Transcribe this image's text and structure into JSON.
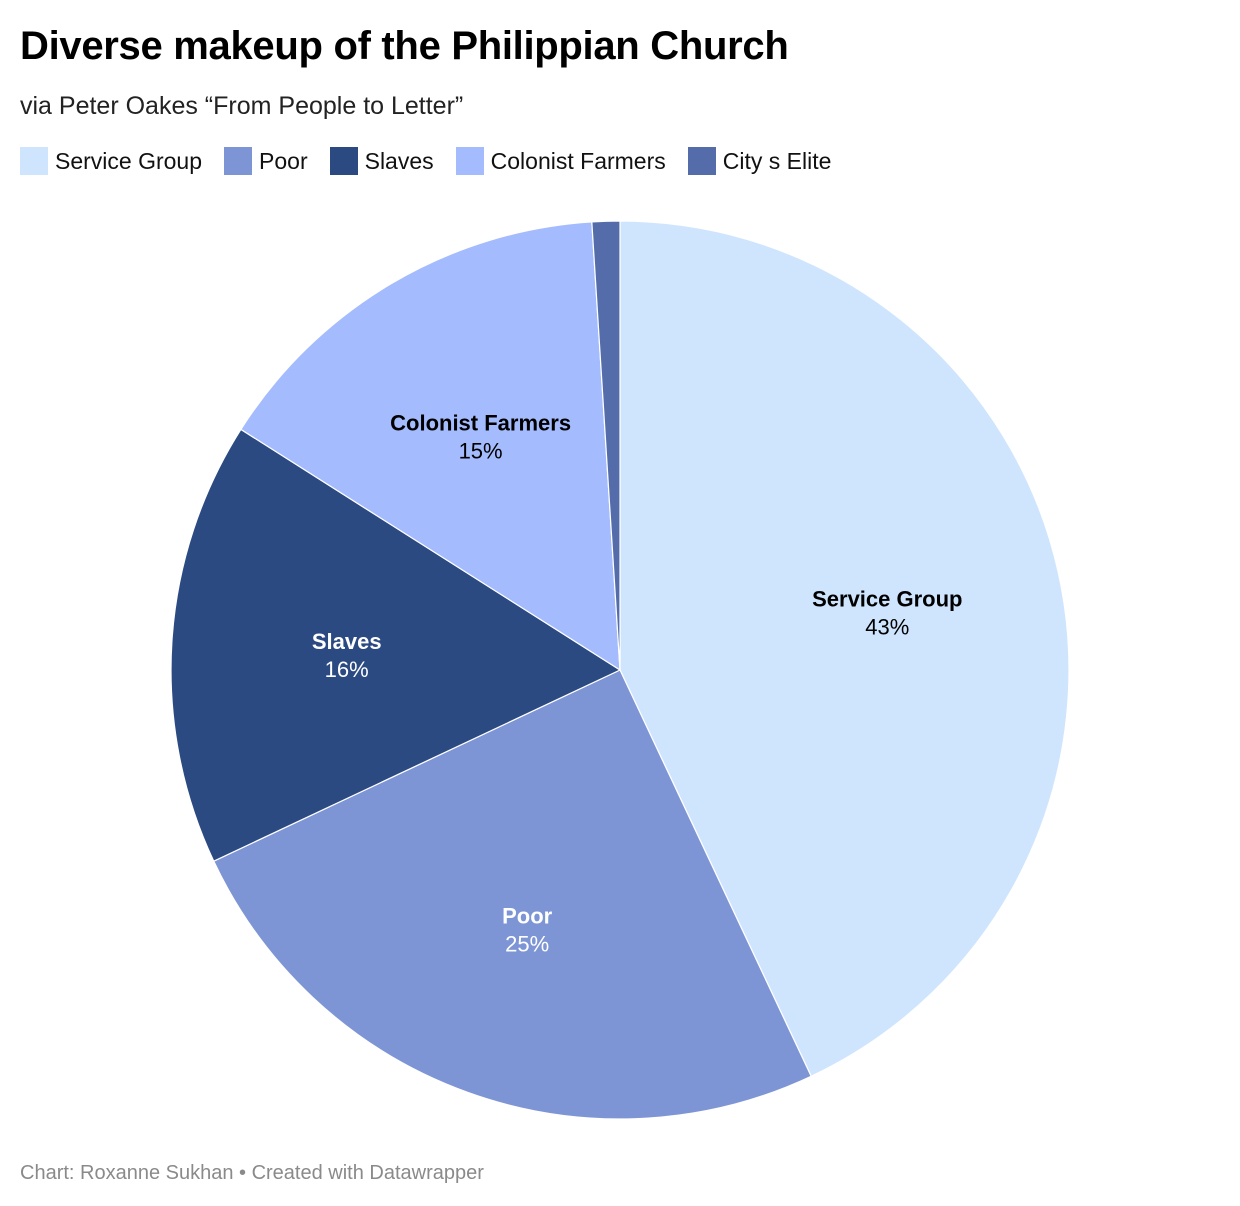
{
  "header": {
    "title": "Diverse makeup of the Philippian Church",
    "subtitle": "via Peter Oakes “From People to Letter”"
  },
  "footer": {
    "credit": "Chart: Roxanne Sukhan • Created with Datawrapper"
  },
  "chart_data": {
    "type": "pie",
    "title": "Diverse makeup of the Philippian Church",
    "subtitle": "via Peter Oakes “From People to Letter”",
    "legend_placement": "top-left",
    "slices": [
      {
        "label": "Service Group",
        "value": 43,
        "value_label": "43%",
        "color": "#cfe5fe",
        "text_color": "#000000",
        "show_label": true
      },
      {
        "label": "Poor",
        "value": 25,
        "value_label": "25%",
        "color": "#7e95d5",
        "text_color": "#ffffff",
        "show_label": true
      },
      {
        "label": "Slaves",
        "value": 16,
        "value_label": "16%",
        "color": "#2c4a82",
        "text_color": "#ffffff",
        "show_label": true
      },
      {
        "label": "Colonist Farmers",
        "value": 15,
        "value_label": "15%",
        "color": "#a4bbfd",
        "text_color": "#000000",
        "show_label": true
      },
      {
        "label": "City s Elite",
        "value": 1,
        "value_label": "1%",
        "color": "#546daa",
        "text_color": "#ffffff",
        "show_label": false
      }
    ]
  }
}
